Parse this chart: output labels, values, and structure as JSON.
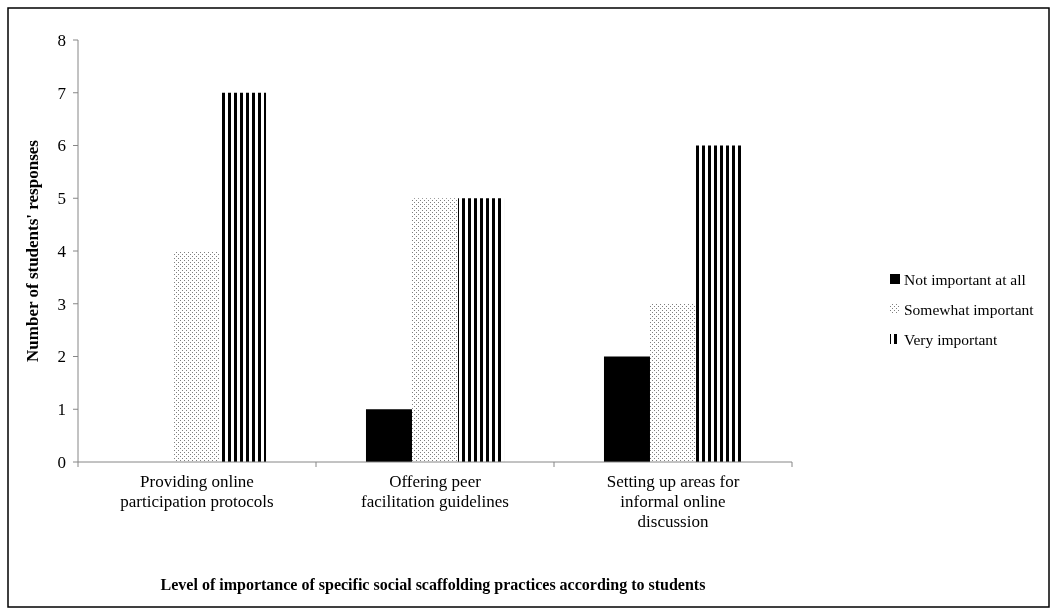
{
  "chart_data": {
    "type": "bar",
    "xlabel": "Level of importance of specific social scaffolding practices according to students",
    "ylabel": "Number of students' responses",
    "categories": [
      "Providing online participation protocols",
      "Offering peer facilitation guidelines",
      "Setting up areas for informal online discussion"
    ],
    "series": [
      {
        "name": "Not important at all",
        "color": "#000000",
        "values": [
          0,
          1,
          2
        ]
      },
      {
        "name": "Somewhat important",
        "color": "#7f7f7f",
        "values": [
          4,
          5,
          3
        ]
      },
      {
        "name": "Very important",
        "color": "#000000",
        "values": [
          7,
          5,
          6
        ]
      }
    ],
    "ylim": [
      0,
      8
    ],
    "yticks": [
      0,
      1,
      2,
      3,
      4,
      5,
      6,
      7,
      8
    ],
    "grid": false,
    "legend": "right"
  }
}
